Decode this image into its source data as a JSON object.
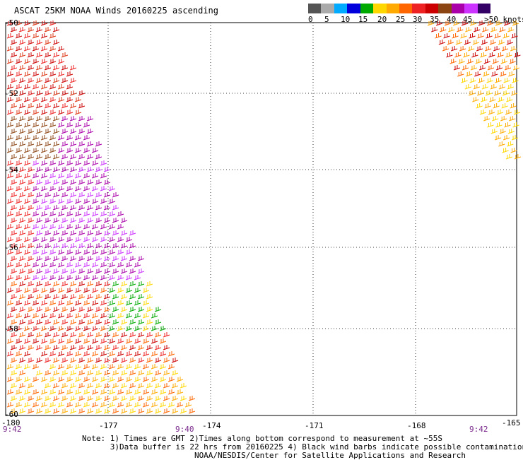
{
  "title": "ASCAT 25KM NOAA Winds 20160225 ascending",
  "legend": {
    "colors": [
      "#555555",
      "#aaaaaa",
      "#00aaff",
      "#0000dd",
      "#00aa00",
      "#ffd700",
      "#ffaa00",
      "#ff6600",
      "#ee2222",
      "#cc0000",
      "#8b4513",
      "#aa00aa",
      "#cc33ff",
      "#330066"
    ],
    "ticks": [
      "0",
      "5",
      "10",
      "15",
      "20",
      "25",
      "30",
      "35",
      "40",
      "45"
    ],
    "max_label": ">50 knots"
  },
  "axes": {
    "lat_labels": [
      "-50",
      "-52",
      "-54",
      "-56",
      "-58",
      "-60"
    ],
    "lon_labels": [
      "-180",
      "-177",
      "-174",
      "-171",
      "-168",
      "-165"
    ],
    "time_labels": [
      "9:42",
      "9:40",
      "9:42"
    ]
  },
  "notes": [
    "Note: 1) Times are GMT 2)Times along bottom correspond to measurement at ~55S",
    "      3)Data buffer is 22 hrs from 20160225 4) Black wind barbs indicate possible contamination",
    "                        NOAA/NESDIS/Center for Satellite Applications and Research"
  ]
}
